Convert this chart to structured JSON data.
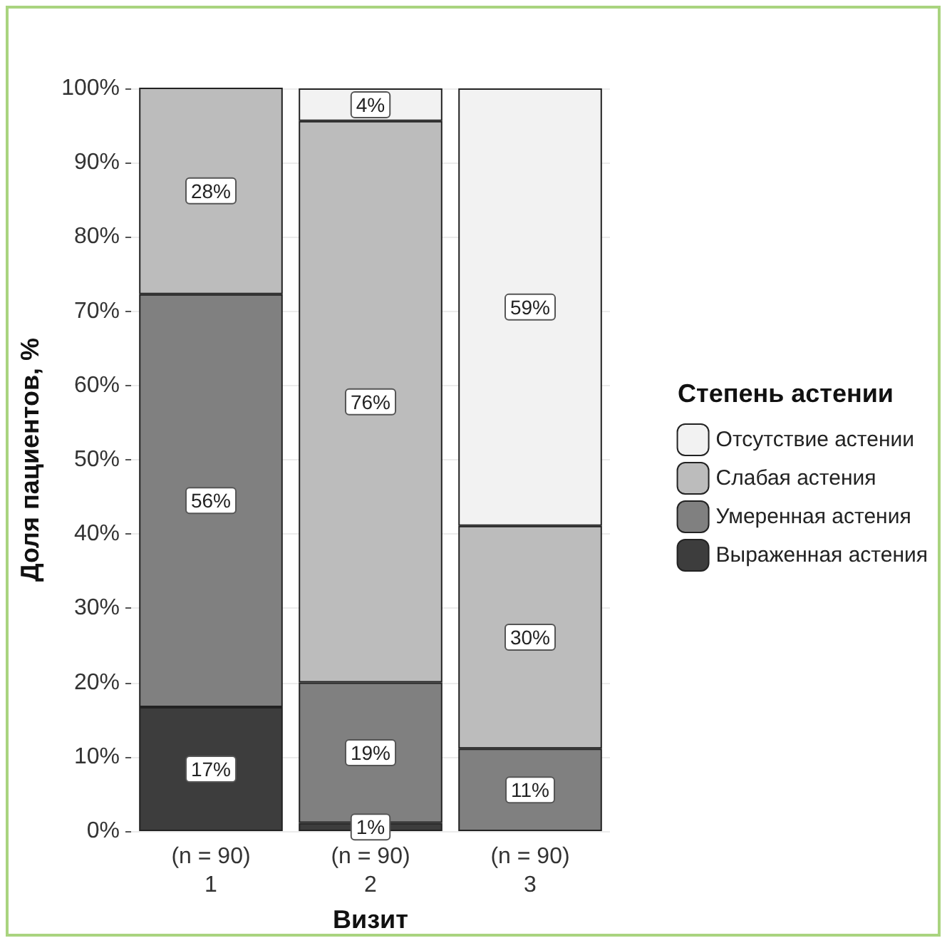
{
  "chart_data": {
    "type": "bar",
    "stacked": true,
    "xlabel": "Визит",
    "ylabel": "Доля пациентов, %",
    "legend_title": "Степень астении",
    "legend": "right",
    "grid": "y",
    "categories": [
      "(n = 90)\n1",
      "(n = 90)\n2",
      "(n = 90)\n3"
    ],
    "ylim": [
      0,
      100
    ],
    "yticks": [
      {
        "value": 0,
        "label": "0%"
      },
      {
        "value": 10,
        "label": "10%"
      },
      {
        "value": 20,
        "label": "20%"
      },
      {
        "value": 30,
        "label": "30%"
      },
      {
        "value": 40,
        "label": "40%"
      },
      {
        "value": 50,
        "label": "50%"
      },
      {
        "value": 60,
        "label": "60%"
      },
      {
        "value": 70,
        "label": "70%"
      },
      {
        "value": 80,
        "label": "80%"
      },
      {
        "value": 90,
        "label": "90%"
      },
      {
        "value": 100,
        "label": "100%"
      }
    ],
    "series": [
      {
        "name": "Выраженная астения",
        "color": "#3d3d3d",
        "values": [
          16.7,
          1.1,
          null
        ],
        "value_labels": [
          "17%",
          "1%",
          null
        ]
      },
      {
        "name": "Умеренная астения",
        "color": "#808080",
        "values": [
          55.6,
          18.9,
          11.1
        ],
        "value_labels": [
          "56%",
          "19%",
          "11%"
        ]
      },
      {
        "name": "Слабая астения",
        "color": "#bcbcbc",
        "values": [
          27.8,
          75.6,
          30.0
        ],
        "value_labels": [
          "28%",
          "76%",
          "30%"
        ]
      },
      {
        "name": "Отсутствие астении",
        "color": "#f2f2f2",
        "values": [
          null,
          4.4,
          58.9
        ],
        "value_labels": [
          null,
          "4%",
          "59%"
        ]
      }
    ]
  }
}
